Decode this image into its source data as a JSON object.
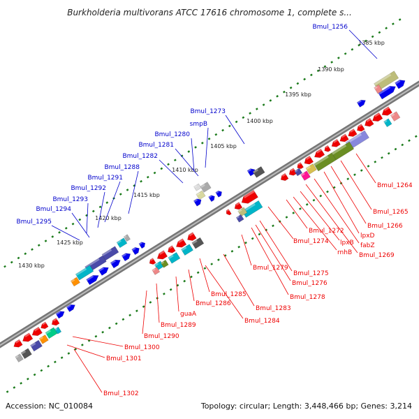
{
  "title": "Burkholderia multivorans ATCC 17616 chromosome 1, complete s...",
  "footer": {
    "accession": "Accession: NC_010084",
    "summary": "Topology: circular; Length: 3,448,466 bp; Genes: 3,214"
  },
  "colors": {
    "forward_label": "#0000cc",
    "reverse_label": "#ee0000",
    "backbone": "#777777",
    "tick": "#1a7a1a"
  },
  "scale_labels": [
    "1385 kbp",
    "1390 kbp",
    "1395 kbp",
    "1400 kbp",
    "1405 kbp",
    "1410 kbp",
    "1415 kbp",
    "1420 kbp",
    "1425 kbp",
    "1430 kbp"
  ],
  "forward_genes": [
    "Bmul_1256",
    "Bmul_1273",
    "smpB",
    "Bmul_1280",
    "Bmul_1281",
    "Bmul_1282",
    "Bmul_1288",
    "Bmul_1291",
    "Bmul_1292",
    "Bmul_1293",
    "Bmul_1294",
    "Bmul_1295"
  ],
  "reverse_genes": [
    "Bmul_1264",
    "Bmul_1265",
    "Bmul_1266",
    "lpxD",
    "fabZ",
    "Bmul_1269",
    "lpxB",
    "rnhB",
    "Bmul_1272",
    "Bmul_1274",
    "Bmul_1275",
    "Bmul_1276",
    "Bmul_1278",
    "Bmul_1279",
    "Bmul_1283",
    "Bmul_1284",
    "Bmul_1285",
    "Bmul_1286",
    "guaA",
    "Bmul_1289",
    "Bmul_1290",
    "Bmul_1300",
    "Bmul_1301",
    "Bmul_1302"
  ]
}
